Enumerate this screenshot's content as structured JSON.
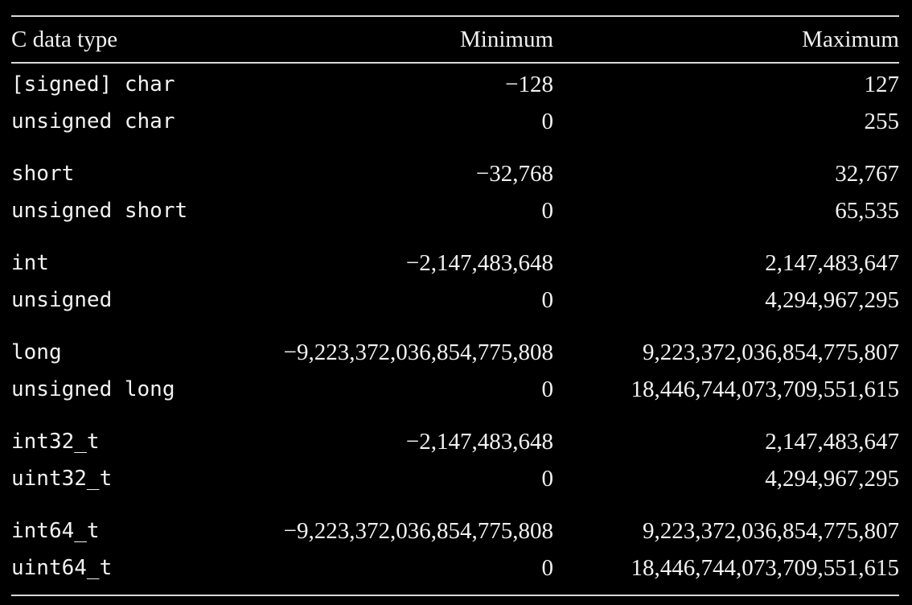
{
  "table": {
    "headers": {
      "type": "C data type",
      "min": "Minimum",
      "max": "Maximum"
    },
    "groups": [
      {
        "rows": [
          {
            "type": "[signed] char",
            "min": "−128",
            "max": "127"
          },
          {
            "type": "unsigned char",
            "min": "0",
            "max": "255"
          }
        ]
      },
      {
        "rows": [
          {
            "type": "short",
            "min": "−32,768",
            "max": "32,767"
          },
          {
            "type": "unsigned short",
            "min": "0",
            "max": "65,535"
          }
        ]
      },
      {
        "rows": [
          {
            "type": "int",
            "min": "−2,147,483,648",
            "max": "2,147,483,647"
          },
          {
            "type": "unsigned",
            "min": "0",
            "max": "4,294,967,295"
          }
        ]
      },
      {
        "rows": [
          {
            "type": "long",
            "min": "−9,223,372,036,854,775,808",
            "max": "9,223,372,036,854,775,807"
          },
          {
            "type": "unsigned long",
            "min": "0",
            "max": "18,446,744,073,709,551,615"
          }
        ]
      },
      {
        "rows": [
          {
            "type": "int32_t",
            "min": "−2,147,483,648",
            "max": "2,147,483,647"
          },
          {
            "type": "uint32_t",
            "min": "0",
            "max": "4,294,967,295"
          }
        ]
      },
      {
        "rows": [
          {
            "type": "int64_t",
            "min": "−9,223,372,036,854,775,808",
            "max": "9,223,372,036,854,775,807"
          },
          {
            "type": "uint64_t",
            "min": "0",
            "max": "18,446,744,073,709,551,615"
          }
        ]
      }
    ]
  }
}
